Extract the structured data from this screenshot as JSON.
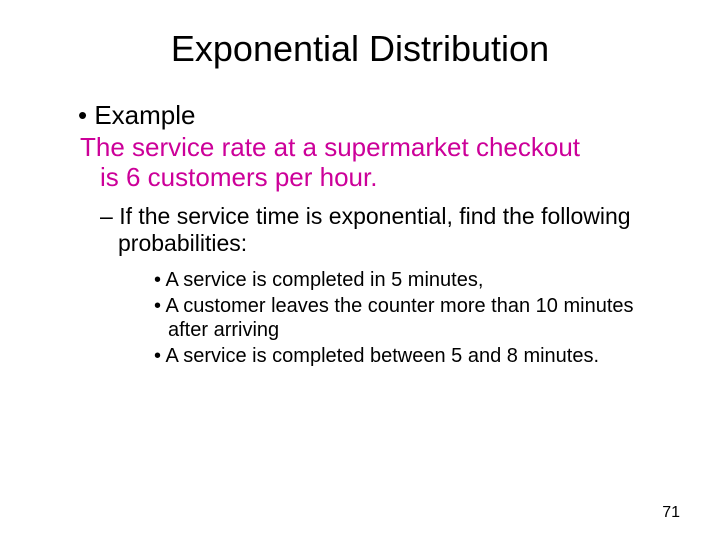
{
  "title": "Exponential Distribution",
  "level1_label": "Example",
  "level1_body_line1": "The service rate at a supermarket checkout",
  "level1_body_line2": "is 6 customers per hour.",
  "level2": "If the service time is exponential, find the following probabilities:",
  "level3_items": {
    "a": " A service is completed in 5 minutes,",
    "b": "A customer leaves the counter more than 10 minutes after arriving",
    "c": "A service is completed between 5 and 8 minutes."
  },
  "page_number": "71",
  "colors": {
    "title": "#000000",
    "body_highlight": "#cc0099",
    "text": "#000000",
    "background": "#ffffff"
  },
  "fontsize": {
    "title": 36,
    "level1": 26,
    "level2": 23,
    "level3": 20,
    "pagenum": 16
  }
}
